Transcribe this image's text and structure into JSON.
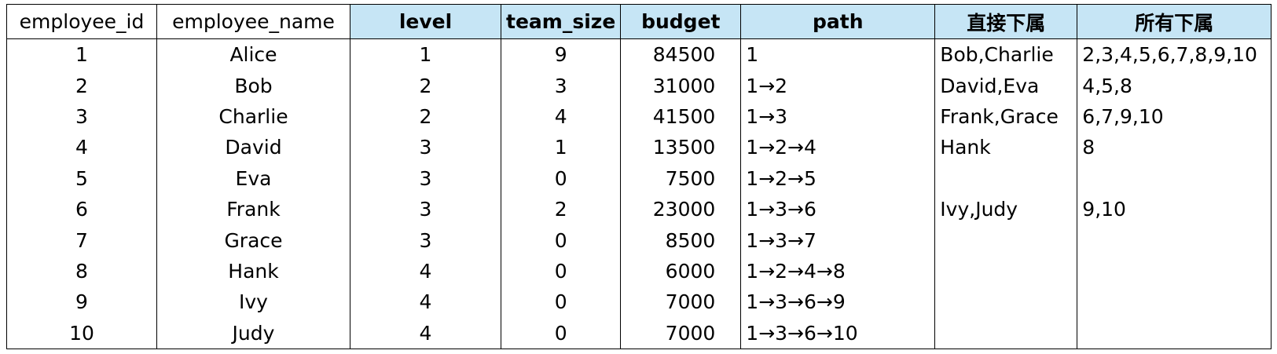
{
  "table": {
    "columns": [
      "employee_id",
      "employee_name",
      "level",
      "team_size",
      "budget",
      "path",
      "直接下属",
      "所有下属"
    ],
    "rows": [
      [
        1,
        "Alice",
        1,
        9,
        84500,
        "1",
        "Bob,Charlie",
        "2,3,4,5,6,7,8,9,10"
      ],
      [
        2,
        "Bob",
        2,
        3,
        31000,
        "1→2",
        "David,Eva",
        "4,5,8"
      ],
      [
        3,
        "Charlie",
        2,
        4,
        41500,
        "1→3",
        "Frank,Grace",
        "6,7,9,10"
      ],
      [
        4,
        "David",
        3,
        1,
        13500,
        "1→2→4",
        "Hank",
        "8"
      ],
      [
        5,
        "Eva",
        3,
        0,
        7500,
        "1→2→5",
        null,
        null
      ],
      [
        6,
        "Frank",
        3,
        2,
        23000,
        "1→3→6",
        "Ivy,Judy",
        "9,10"
      ],
      [
        7,
        "Grace",
        3,
        0,
        8500,
        "1→3→7",
        null,
        null
      ],
      [
        8,
        "Hank",
        4,
        0,
        6000,
        "1→2→4→8",
        null,
        null
      ],
      [
        9,
        "Ivy",
        4,
        0,
        7000,
        "1→3→6→9",
        null,
        null
      ],
      [
        10,
        "Judy",
        4,
        0,
        7000,
        "1→3→6→10",
        null,
        null
      ]
    ]
  }
}
